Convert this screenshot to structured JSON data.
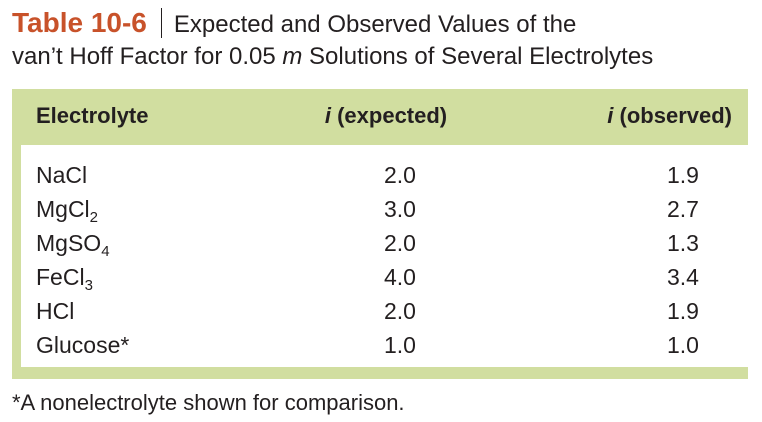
{
  "caption": {
    "table_number": "Table 10-6",
    "title_line1": "Expected and Observed Values of the",
    "title_line2_pre": "van’t Hoff Factor for 0.05 ",
    "title_line2_unit": "m",
    "title_line2_post": " Solutions of Several Electrolytes"
  },
  "table": {
    "headers": {
      "electrolyte": "Electrolyte",
      "expected_var": "i",
      "expected_label": " (expected)",
      "observed_var": "i",
      "observed_label": " (observed)"
    },
    "rows": [
      {
        "name": "NaCl",
        "sub": "",
        "tail": "",
        "expected": "2.0",
        "observed": "1.9"
      },
      {
        "name": "MgCl",
        "sub": "2",
        "tail": "",
        "expected": "3.0",
        "observed": "2.7"
      },
      {
        "name": "MgSO",
        "sub": "4",
        "tail": "",
        "expected": "2.0",
        "observed": "1.3"
      },
      {
        "name": "FeCl",
        "sub": "3",
        "tail": "",
        "expected": "4.0",
        "observed": "3.4"
      },
      {
        "name": "HCl",
        "sub": "",
        "tail": "",
        "expected": "2.0",
        "observed": "1.9"
      },
      {
        "name": "Glucose*",
        "sub": "",
        "tail": "",
        "expected": "1.0",
        "observed": "1.0"
      }
    ]
  },
  "footnote": "*A nonelectrolyte shown for comparison.",
  "colors": {
    "accent": "#c8522a",
    "header_background": "#d1dea0",
    "text": "#231f20"
  }
}
